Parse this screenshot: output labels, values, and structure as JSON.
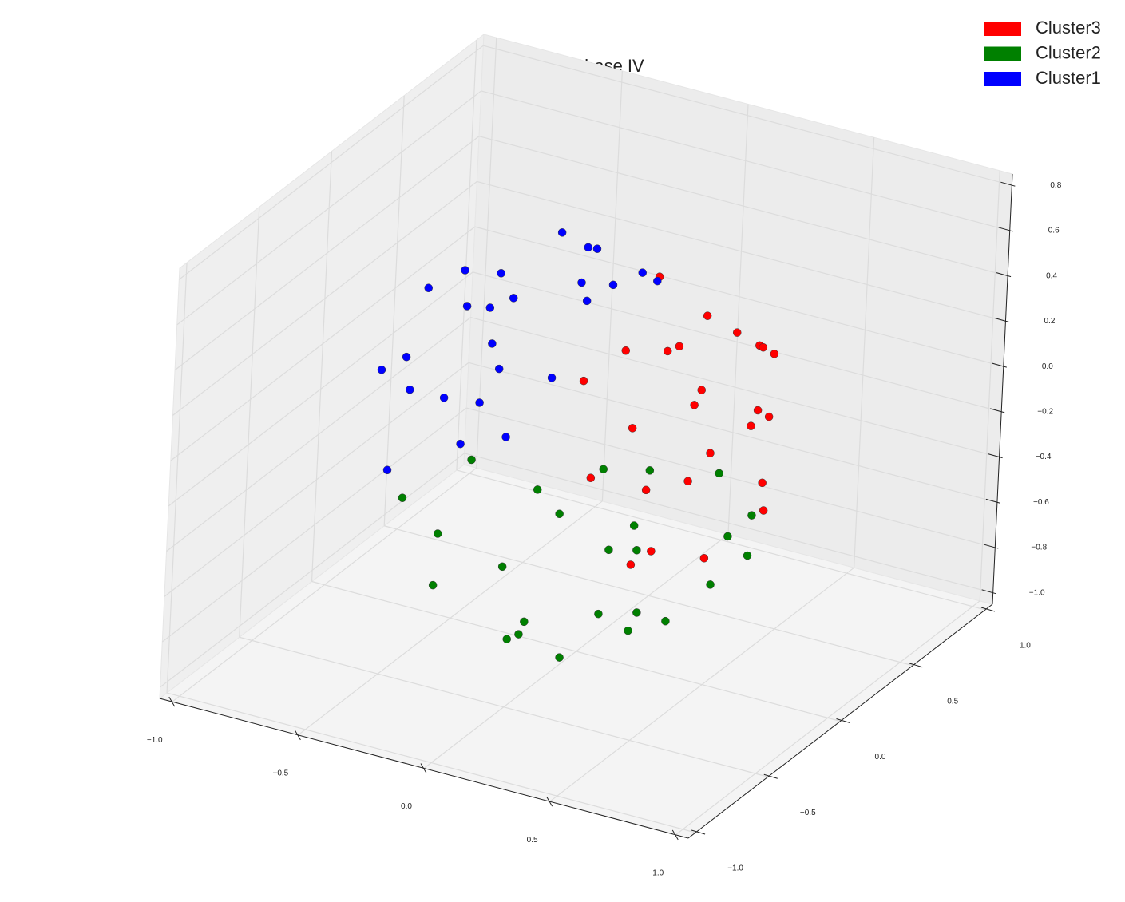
{
  "chart_data": {
    "type": "scatter3d",
    "title": "Spectral by Phase IV",
    "xlim": [
      -1.05,
      1.05
    ],
    "ylim": [
      -1.05,
      1.05
    ],
    "zlim": [
      -1.05,
      0.85
    ],
    "xticks": [
      {
        "value": -1,
        "label": "−1.0"
      },
      {
        "value": -0.5,
        "label": "−0.5"
      },
      {
        "value": 0,
        "label": "0.0"
      },
      0.5,
      {
        "value": 1,
        "label": "1.0"
      }
    ],
    "yticks": [
      {
        "value": -1,
        "label": "−1.0"
      },
      {
        "value": -0.5,
        "label": "−0.5"
      },
      {
        "value": 0,
        "label": "0.0"
      },
      0.5,
      {
        "value": 1,
        "label": "1.0"
      }
    ],
    "zticks": [
      {
        "value": -1,
        "label": "−1.0"
      },
      {
        "value": -0.8,
        "label": "−0.8"
      },
      {
        "value": -0.6,
        "label": "−0.6"
      },
      {
        "value": -0.4,
        "label": "−0.4"
      },
      {
        "value": -0.2,
        "label": "−0.2"
      },
      {
        "value": 0,
        "label": "0.0"
      },
      0.2,
      0.4,
      0.6,
      0.8
    ],
    "grid": true,
    "legend": "upper right",
    "series": [
      {
        "name": "Cluster3",
        "color": "#ff0000",
        "x": [
          0.6,
          0.5,
          0.3,
          0.2,
          0.55,
          0.4,
          0.7,
          0.45,
          0.25,
          0.5,
          0.65,
          0.35,
          0.15,
          0.6,
          0.3,
          0.4,
          0.55,
          0.2,
          0.7,
          0.35,
          0.5,
          0.25,
          0.45,
          0.6,
          0.3
        ],
        "y": [
          -0.2,
          0.3,
          0.5,
          -0.4,
          -0.5,
          0.1,
          0.0,
          0.4,
          -0.2,
          -0.1,
          -0.3,
          0.6,
          0.2,
          0.2,
          -0.5,
          -0.4,
          0.3,
          0.4,
          -0.1,
          0.0,
          -0.55,
          0.1,
          0.5,
          -0.35,
          -0.1
        ],
        "z": [
          0.1,
          0.3,
          0.2,
          0.4,
          -0.2,
          0.5,
          -0.1,
          -0.05,
          0.45,
          0.3,
          -0.3,
          0.1,
          0.55,
          -0.35,
          0.05,
          0.25,
          0.0,
          -0.1,
          0.2,
          0.4,
          -0.25,
          0.3,
          0.15,
          0.05,
          -0.2
        ]
      },
      {
        "name": "Cluster2",
        "color": "#008000",
        "x": [
          -0.4,
          0.0,
          0.3,
          -0.2,
          0.5,
          0.1,
          -0.5,
          0.2,
          -0.1,
          0.4,
          -0.3,
          0.0,
          0.6,
          -0.6,
          0.3,
          0.1,
          -0.2,
          0.45,
          -0.4,
          0.2,
          0.0,
          -0.1,
          0.35,
          -0.25,
          0.15
        ],
        "y": [
          -0.3,
          0.2,
          -0.4,
          0.5,
          0.3,
          -0.6,
          0.1,
          0.6,
          -0.2,
          -0.1,
          -0.5,
          0.4,
          0.1,
          -0.2,
          0.5,
          -0.3,
          0.2,
          -0.4,
          0.4,
          0.0,
          -0.5,
          0.65,
          0.3,
          -0.1,
          0.1
        ],
        "z": [
          -0.5,
          -0.7,
          -0.6,
          -0.55,
          -0.45,
          -0.65,
          -0.4,
          -0.5,
          -0.85,
          -0.75,
          -0.6,
          -0.8,
          -0.5,
          -0.45,
          -0.7,
          -0.9,
          -0.6,
          -0.55,
          -0.65,
          -0.9,
          -0.75,
          -0.6,
          -0.8,
          -0.7,
          -0.5
        ]
      },
      {
        "name": "Cluster1",
        "color": "#0000ff",
        "x": [
          -0.6,
          -0.5,
          -0.3,
          -0.2,
          -0.55,
          -0.4,
          -0.1,
          -0.05,
          -0.7,
          -0.45,
          -0.25,
          -0.5,
          -0.15,
          -0.65,
          -0.35,
          -0.1,
          -0.6,
          -0.3,
          -0.4,
          0.0,
          -0.2,
          -0.5,
          -0.35,
          -0.15,
          -0.7
        ],
        "y": [
          0.2,
          -0.4,
          0.5,
          -0.2,
          0.3,
          -0.3,
          0.1,
          0.55,
          0.0,
          -0.1,
          0.6,
          0.25,
          -0.5,
          -0.3,
          0.4,
          0.2,
          0.45,
          -0.35,
          0.0,
          0.35,
          0.1,
          -0.5,
          0.6,
          -0.3,
          0.1
        ],
        "z": [
          0.2,
          0.3,
          0.4,
          0.55,
          0.0,
          0.1,
          0.5,
          0.3,
          -0.1,
          0.55,
          0.2,
          0.35,
          0.25,
          0.15,
          0.5,
          0.6,
          -0.2,
          -0.05,
          0.35,
          0.45,
          0.05,
          -0.15,
          0.1,
          0.0,
          0.3
        ]
      }
    ]
  }
}
